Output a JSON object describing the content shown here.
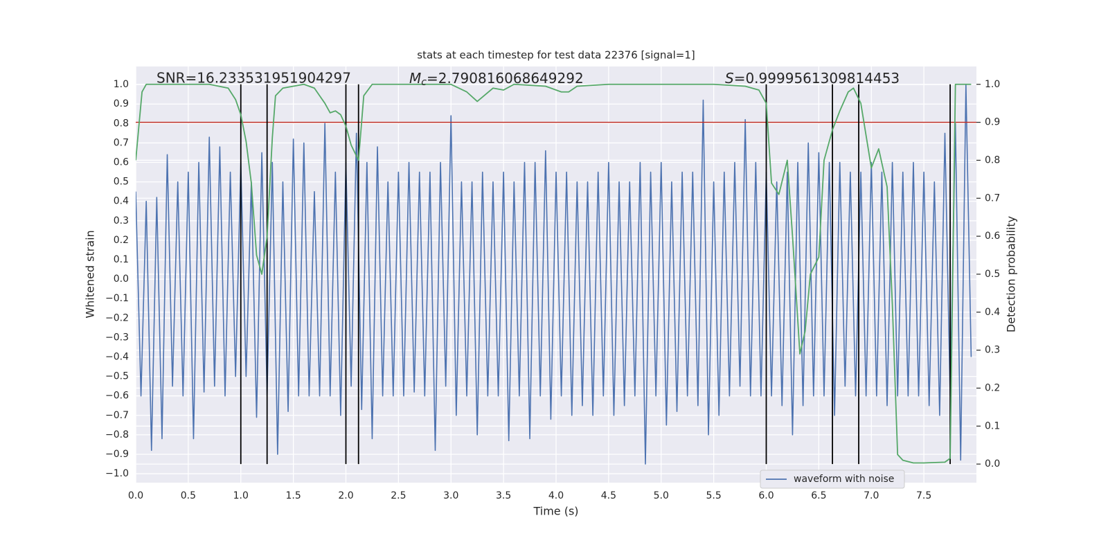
{
  "chart_data": {
    "type": "line",
    "title": "stats at each timestep for test data 22376 [signal=1]",
    "xlabel": "Time (s)",
    "ylabel": "Whitened strain",
    "y2label": "Detection probability",
    "annotations": [
      {
        "text": "SNR=16.233531951904297"
      },
      {
        "symbol": "M",
        "subscript": "c",
        "text": "=2.790816068649292"
      },
      {
        "symbol": "S",
        "text": "=0.9999561309814453"
      }
    ],
    "xlim": [
      0,
      8
    ],
    "ylim": [
      -1.046,
      1.093
    ],
    "y2lim": [
      -0.049,
      1.047
    ],
    "xticks": [
      {
        "value": 0,
        "label": "0.0"
      },
      {
        "value": 0.5,
        "label": "0.5"
      },
      {
        "value": 1,
        "label": "1.0"
      },
      {
        "value": 1.5,
        "label": "1.5"
      },
      {
        "value": 2,
        "label": "2.0"
      },
      {
        "value": 2.5,
        "label": "2.5"
      },
      {
        "value": 3,
        "label": "3.0"
      },
      {
        "value": 3.5,
        "label": "3.5"
      },
      {
        "value": 4,
        "label": "4.0"
      },
      {
        "value": 4.5,
        "label": "4.5"
      },
      {
        "value": 5,
        "label": "5.0"
      },
      {
        "value": 5.5,
        "label": "5.5"
      },
      {
        "value": 6,
        "label": "6.0"
      },
      {
        "value": 6.5,
        "label": "6.5"
      },
      {
        "value": 7,
        "label": "7.0"
      },
      {
        "value": 7.5,
        "label": "7.5"
      }
    ],
    "yticks": [
      {
        "value": -1,
        "label": "−1.0"
      },
      {
        "value": -0.9,
        "label": "−0.9"
      },
      {
        "value": -0.8,
        "label": "−0.8"
      },
      {
        "value": -0.7,
        "label": "−0.7"
      },
      {
        "value": -0.6,
        "label": "−0.6"
      },
      {
        "value": -0.5,
        "label": "−0.5"
      },
      {
        "value": -0.4,
        "label": "−0.4"
      },
      {
        "value": -0.3,
        "label": "−0.3"
      },
      {
        "value": -0.2,
        "label": "−0.2"
      },
      {
        "value": -0.1,
        "label": "−0.1"
      },
      {
        "value": 0,
        "label": "0.0"
      },
      {
        "value": 0.1,
        "label": "0.1"
      },
      {
        "value": 0.2,
        "label": "0.2"
      },
      {
        "value": 0.3,
        "label": "0.3"
      },
      {
        "value": 0.4,
        "label": "0.4"
      },
      {
        "value": 0.5,
        "label": "0.5"
      },
      {
        "value": 0.6,
        "label": "0.6"
      },
      {
        "value": 0.7,
        "label": "0.7"
      },
      {
        "value": 0.8,
        "label": "0.8"
      },
      {
        "value": 0.9,
        "label": "0.9"
      },
      {
        "value": 1,
        "label": "1.0"
      }
    ],
    "y2ticks": [
      {
        "value": 0,
        "label": "0.0"
      },
      {
        "value": 0.1,
        "label": "0.1"
      },
      {
        "value": 0.2,
        "label": "0.2"
      },
      {
        "value": 0.3,
        "label": "0.3"
      },
      {
        "value": 0.4,
        "label": "0.4"
      },
      {
        "value": 0.5,
        "label": "0.5"
      },
      {
        "value": 0.6,
        "label": "0.6"
      },
      {
        "value": 0.7,
        "label": "0.7"
      },
      {
        "value": 0.8,
        "label": "0.8"
      },
      {
        "value": 0.9,
        "label": "0.9"
      },
      {
        "value": 1,
        "label": "1.0"
      }
    ],
    "grid": true,
    "legend": "lower right",
    "threshold": {
      "value": 0.9,
      "axis": "y2",
      "color": "#c03028"
    },
    "vlines": {
      "x": [
        1.0,
        1.25,
        2.0,
        2.12,
        6.0,
        6.63,
        6.88,
        7.75
      ],
      "range": [
        0,
        1
      ],
      "axis": "y2",
      "color": "#000000"
    },
    "series": [
      {
        "name": "waveform with noise",
        "color": "#4c72b0",
        "x": [
          0,
          0.05,
          0.1,
          0.15,
          0.2,
          0.25,
          0.3,
          0.35,
          0.4,
          0.45,
          0.5,
          0.55,
          0.6,
          0.65,
          0.7,
          0.75,
          0.8,
          0.85,
          0.9,
          0.95,
          1,
          1.05,
          1.1,
          1.15,
          1.2,
          1.25,
          1.3,
          1.35,
          1.4,
          1.45,
          1.5,
          1.55,
          1.6,
          1.65,
          1.7,
          1.75,
          1.8,
          1.85,
          1.9,
          1.95,
          2,
          2.05,
          2.1,
          2.15,
          2.2,
          2.25,
          2.3,
          2.35,
          2.4,
          2.45,
          2.5,
          2.55,
          2.6,
          2.65,
          2.7,
          2.75,
          2.8,
          2.85,
          2.9,
          2.95,
          3,
          3.05,
          3.1,
          3.15,
          3.2,
          3.25,
          3.3,
          3.35,
          3.4,
          3.45,
          3.5,
          3.55,
          3.6,
          3.65,
          3.7,
          3.75,
          3.8,
          3.85,
          3.9,
          3.95,
          4,
          4.05,
          4.1,
          4.15,
          4.2,
          4.25,
          4.3,
          4.35,
          4.4,
          4.45,
          4.5,
          4.55,
          4.6,
          4.65,
          4.7,
          4.75,
          4.8,
          4.85,
          4.9,
          4.95,
          5,
          5.05,
          5.1,
          5.15,
          5.2,
          5.25,
          5.3,
          5.35,
          5.4,
          5.45,
          5.5,
          5.55,
          5.6,
          5.65,
          5.7,
          5.75,
          5.8,
          5.85,
          5.9,
          5.95,
          6,
          6.05,
          6.1,
          6.15,
          6.2,
          6.25,
          6.3,
          6.35,
          6.4,
          6.45,
          6.5,
          6.55,
          6.6,
          6.65,
          6.7,
          6.75,
          6.8,
          6.85,
          6.9,
          6.95,
          7,
          7.05,
          7.1,
          7.15,
          7.2,
          7.25,
          7.3,
          7.35,
          7.4,
          7.45,
          7.5,
          7.55,
          7.6,
          7.65,
          7.7,
          7.75,
          7.8,
          7.85,
          7.9,
          7.95
        ],
        "values": [
          0.45,
          -0.6,
          0.4,
          -0.88,
          0.42,
          -0.82,
          0.64,
          -0.55,
          0.5,
          -0.6,
          0.55,
          -0.82,
          0.6,
          -0.58,
          0.73,
          -0.55,
          0.68,
          -0.6,
          0.55,
          -0.5,
          0.6,
          -0.5,
          0.5,
          -0.71,
          0.65,
          -0.6,
          0.6,
          -0.9,
          0.5,
          -0.68,
          0.72,
          -0.6,
          0.7,
          -0.6,
          0.45,
          -0.6,
          0.8,
          -0.6,
          0.55,
          -0.7,
          0.6,
          -0.55,
          0.75,
          -0.67,
          0.6,
          -0.82,
          0.68,
          -0.6,
          0.5,
          -0.6,
          0.55,
          -0.6,
          0.6,
          -0.58,
          0.55,
          -0.6,
          0.55,
          -0.88,
          0.6,
          -0.55,
          0.84,
          -0.7,
          0.5,
          -0.6,
          0.5,
          -0.8,
          0.55,
          -0.6,
          0.5,
          -0.6,
          0.55,
          -0.83,
          0.5,
          -0.6,
          0.6,
          -0.82,
          0.6,
          -0.6,
          0.66,
          -0.72,
          0.55,
          -0.6,
          0.55,
          -0.7,
          0.5,
          -0.65,
          0.5,
          -0.7,
          0.55,
          -0.6,
          0.6,
          -0.7,
          0.5,
          -0.65,
          0.5,
          -0.6,
          0.6,
          -0.95,
          0.55,
          -0.6,
          0.6,
          -0.75,
          0.5,
          -0.68,
          0.55,
          -0.6,
          0.55,
          -0.65,
          0.92,
          -0.8,
          0.5,
          -0.7,
          0.55,
          -0.6,
          0.6,
          -0.55,
          0.82,
          -0.6,
          0.6,
          -0.6,
          0.55,
          -0.6,
          0.5,
          -0.65,
          0.55,
          -0.8,
          0.6,
          -0.65,
          0.7,
          -0.6,
          0.65,
          -0.6,
          0.6,
          -0.7,
          0.6,
          -0.55,
          0.55,
          -0.6,
          0.55,
          -0.6,
          0.6,
          -0.6,
          0.55,
          -0.65,
          0.6,
          -0.6,
          0.55,
          -0.6,
          0.6,
          -0.6,
          0.55,
          -0.65,
          0.5,
          -0.7,
          0.75,
          -0.6,
          0.8,
          -0.93,
          1.0,
          -0.4
        ]
      },
      {
        "color": "#55a868",
        "axis": "y2",
        "x": [
          0,
          0.06,
          0.1,
          0.3,
          0.5,
          0.7,
          0.88,
          0.95,
          1.0,
          1.05,
          1.1,
          1.15,
          1.2,
          1.25,
          1.3,
          1.33,
          1.4,
          1.5,
          1.6,
          1.7,
          1.75,
          1.8,
          1.85,
          1.9,
          1.95,
          2.0,
          2.05,
          2.12,
          2.17,
          2.25,
          2.5,
          3.0,
          3.15,
          3.25,
          3.4,
          3.5,
          3.6,
          3.9,
          4.05,
          4.12,
          4.2,
          4.5,
          5.0,
          5.5,
          5.8,
          5.93,
          6.0,
          6.05,
          6.12,
          6.2,
          6.25,
          6.32,
          6.37,
          6.42,
          6.5,
          6.55,
          6.63,
          6.7,
          6.78,
          6.83,
          6.9,
          7.0,
          7.07,
          7.15,
          7.2,
          7.25,
          7.3,
          7.4,
          7.5,
          7.7,
          7.75,
          7.8,
          7.95
        ],
        "values": [
          0.8,
          0.98,
          1.0,
          1.0,
          1.0,
          1.0,
          0.99,
          0.96,
          0.92,
          0.85,
          0.74,
          0.55,
          0.5,
          0.6,
          0.86,
          0.97,
          0.99,
          0.995,
          1.0,
          0.99,
          0.97,
          0.95,
          0.925,
          0.93,
          0.92,
          0.89,
          0.84,
          0.8,
          0.97,
          1.0,
          1.0,
          1.0,
          0.98,
          0.955,
          0.99,
          0.985,
          1.0,
          0.995,
          0.98,
          0.98,
          0.995,
          1.0,
          1.0,
          1.0,
          0.995,
          0.985,
          0.95,
          0.74,
          0.71,
          0.8,
          0.6,
          0.29,
          0.35,
          0.5,
          0.545,
          0.8,
          0.88,
          0.93,
          0.98,
          0.99,
          0.95,
          0.78,
          0.83,
          0.73,
          0.42,
          0.025,
          0.01,
          0.003,
          0.003,
          0.005,
          0.015,
          1.0,
          1.0
        ]
      }
    ]
  }
}
